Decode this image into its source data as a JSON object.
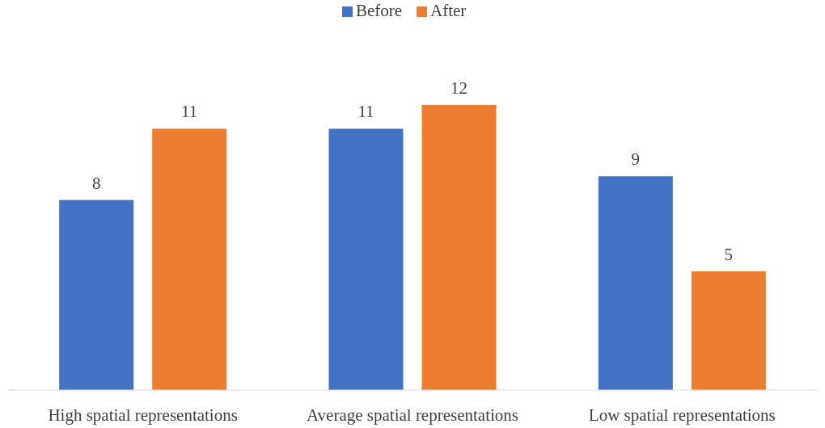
{
  "chart_data": {
    "type": "bar",
    "categories": [
      "High spatial representations",
      "Average spatial representations",
      "Low spatial representations"
    ],
    "series": [
      {
        "name": "Before",
        "color": "#4472c4",
        "values": [
          8,
          11,
          9
        ]
      },
      {
        "name": "After",
        "color": "#ed7d31",
        "values": [
          11,
          12,
          5
        ]
      }
    ],
    "data_labels": true,
    "legend": "top"
  }
}
